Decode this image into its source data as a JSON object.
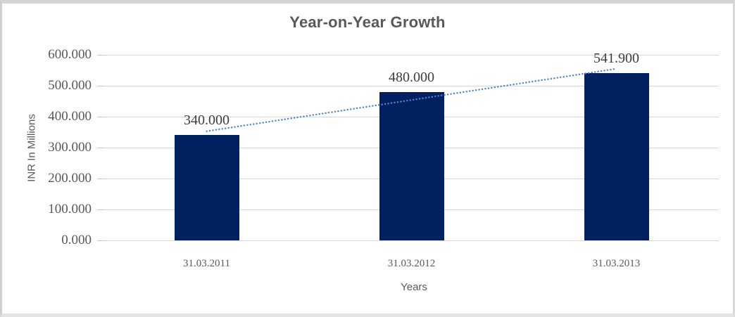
{
  "chart": {
    "title": "Year-on-Year Growth",
    "y_axis_title": "INR In Millions",
    "x_axis_title": "Years"
  },
  "chart_data": {
    "type": "bar",
    "title": "Year-on-Year Growth",
    "xlabel": "Years",
    "ylabel": "INR In Millions",
    "categories": [
      "31.03.2011",
      "31.03.2012",
      "31.03.2013"
    ],
    "values": [
      340.0,
      480.0,
      541.9
    ],
    "value_labels": [
      "340.000",
      "480.000",
      "541.900"
    ],
    "y_ticks": {
      "values": [
        0,
        100,
        200,
        300,
        400,
        500,
        600
      ],
      "labels": [
        "0.000",
        "100.000",
        "200.000",
        "300.000",
        "400.000",
        "500.000",
        "600.000"
      ]
    },
    "ylim": [
      0,
      600
    ],
    "grid": true,
    "legend": "none",
    "bar_color": "#002060",
    "gridline_color": "#d6d6d6",
    "label_color": "#3d3d3d",
    "axis_text_color": "#595959",
    "trendline": {
      "type": "linear",
      "style": "dotted",
      "color": "#4e87c7",
      "fitted_values": [
        353.0,
        453.97,
        554.93
      ]
    }
  }
}
